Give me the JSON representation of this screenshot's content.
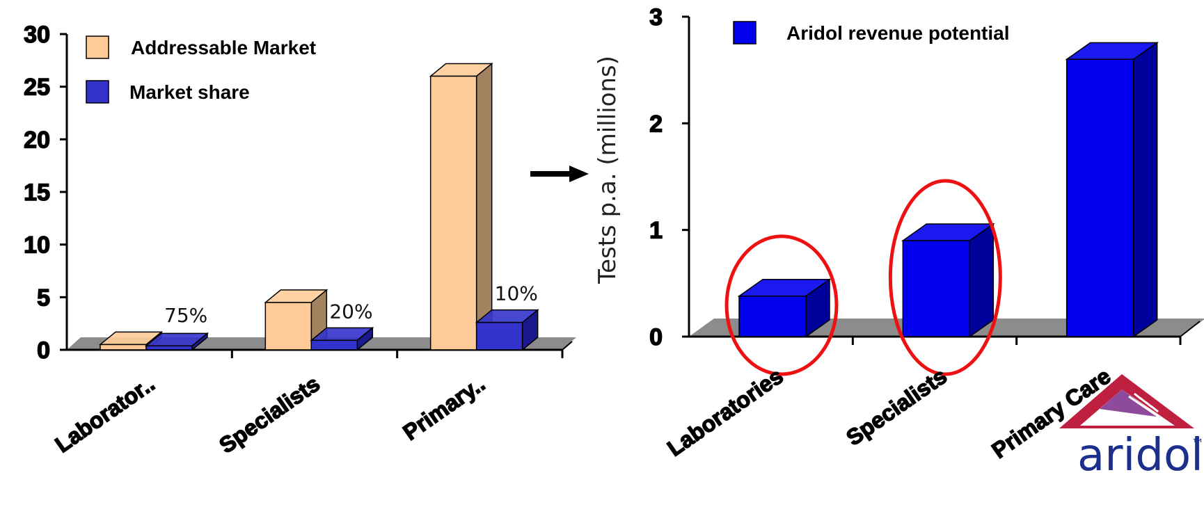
{
  "chart_data": [
    {
      "type": "bar",
      "categories": [
        "Laborator..",
        "Specialists",
        "Primary.."
      ],
      "series": [
        {
          "name": "Addressable Market",
          "values": [
            0.5,
            4.5,
            26
          ],
          "color": "#ffcc99",
          "side_color": "#a38260"
        },
        {
          "name": "Market share",
          "values": [
            0.375,
            0.9,
            2.6
          ],
          "color": "#3333cc",
          "side_color": "#1a1a8c"
        }
      ],
      "data_labels": [
        "75%",
        "20%",
        "10%"
      ],
      "ylim": [
        0,
        30
      ],
      "yticks": [
        "0",
        "5",
        "10",
        "15",
        "20",
        "25",
        "30"
      ],
      "legend": "top-left",
      "grid": false
    },
    {
      "type": "bar",
      "categories": [
        "Laboratories",
        "Specialists",
        "Primary Care"
      ],
      "series": [
        {
          "name": "Aridol revenue potential",
          "values": [
            0.38,
            0.9,
            2.6
          ],
          "color": "#0000ee",
          "side_color": "#00009a"
        }
      ],
      "ylabel": "Tests p.a. (millions)",
      "ylim": [
        0,
        3
      ],
      "yticks": [
        "0",
        "1",
        "2",
        "3"
      ],
      "highlighted_categories": [
        "Laboratories",
        "Specialists"
      ],
      "highlight_color": "#ee1111",
      "legend": "top-left",
      "grid": false
    }
  ],
  "logo": {
    "text": "aridol",
    "mark": "™",
    "colors": [
      "#c02040",
      "#7a2a8a",
      "#1d2f8c"
    ]
  }
}
